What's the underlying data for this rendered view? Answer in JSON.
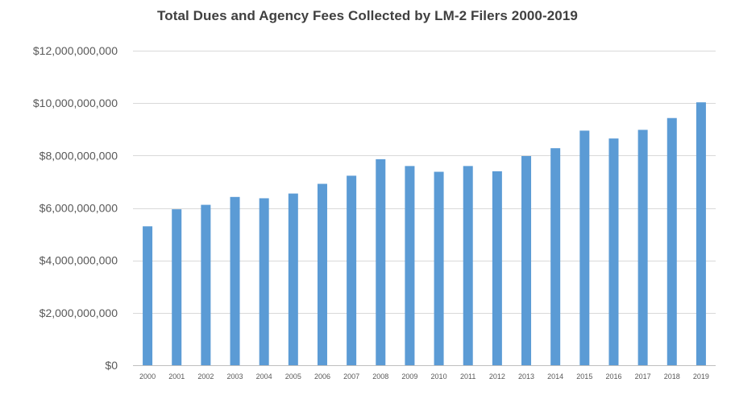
{
  "chart_data": {
    "type": "bar",
    "title": "Total Dues and Agency Fees Collected by LM-2 Filers 2000-2019",
    "xlabel": "",
    "ylabel": "",
    "categories": [
      "2000",
      "2001",
      "2002",
      "2003",
      "2004",
      "2005",
      "2006",
      "2007",
      "2008",
      "2009",
      "2010",
      "2011",
      "2012",
      "2013",
      "2014",
      "2015",
      "2016",
      "2017",
      "2018",
      "2019"
    ],
    "values": [
      5300000000,
      5950000000,
      6120000000,
      6420000000,
      6370000000,
      6550000000,
      6920000000,
      7230000000,
      7860000000,
      7600000000,
      7380000000,
      7600000000,
      7400000000,
      7980000000,
      8280000000,
      8950000000,
      8650000000,
      8980000000,
      9430000000,
      10030000000
    ],
    "ylim": [
      0,
      12000000000
    ],
    "y_ticks": [
      0,
      2000000000,
      4000000000,
      6000000000,
      8000000000,
      10000000000,
      12000000000
    ],
    "y_tick_labels": [
      "$0",
      "$2,000,000,000",
      "$4,000,000,000",
      "$6,000,000,000",
      "$8,000,000,000",
      "$10,000,000,000",
      "$12,000,000,000"
    ],
    "grid": true,
    "legend": "none",
    "colors": {
      "bar": "#5b9bd5",
      "grid": "#d9d9d9",
      "axis": "#bfbfbf",
      "text": "#595959",
      "title": "#404040"
    }
  }
}
